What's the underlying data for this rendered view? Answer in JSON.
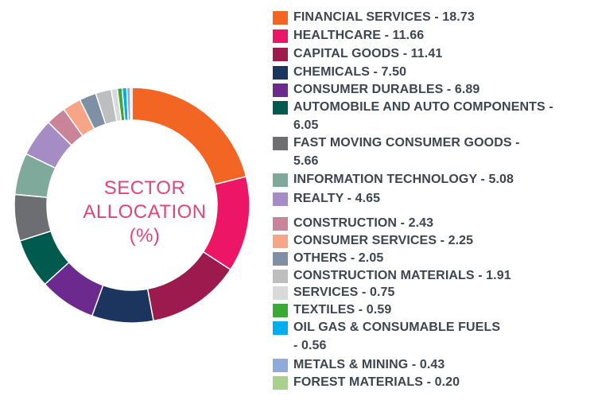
{
  "chart_data": {
    "type": "pie",
    "center_title": [
      "SECTOR",
      "ALLOCATION",
      "(%)"
    ],
    "series": [
      {
        "label": "FINANCIAL SERVICES",
        "value": 18.73,
        "display": "FINANCIAL SERVICES - 18.73",
        "color": "#f26522"
      },
      {
        "label": "HEALTHCARE",
        "value": 11.66,
        "display": "HEALTHCARE - 11.66",
        "color": "#ec1566"
      },
      {
        "label": "CAPITAL GOODS",
        "value": 11.41,
        "display": "CAPITAL GOODS - 11.41",
        "color": "#9c1a4e"
      },
      {
        "label": "CHEMICALS",
        "value": 7.5,
        "display": "CHEMICALS - 7.50",
        "color": "#1c355e"
      },
      {
        "label": "CONSUMER DURABLES",
        "value": 6.89,
        "display": "CONSUMER DURABLES - 6.89",
        "color": "#6d2a8e"
      },
      {
        "label": "AUTOMOBILE AND AUTO COMPONENTS",
        "value": 6.05,
        "display": [
          "AUTOMOBILE AND AUTO COMPONENTS -",
          "6.05"
        ],
        "color": "#005a4e"
      },
      {
        "label": "FAST MOVING CONSUMER GOODS",
        "value": 5.66,
        "display": [
          "FAST MOVING CONSUMER GOODS -",
          "5.66"
        ],
        "color": "#6d6e71"
      },
      {
        "label": "INFORMATION TECHNOLOGY",
        "value": 5.08,
        "display": "INFORMATION TECHNOLOGY - 5.08",
        "color": "#7fa99b"
      },
      {
        "label": "REALTY",
        "value": 4.65,
        "display": "REALTY - 4.65",
        "color": "#a58cc4"
      },
      {
        "label": "CONSTRUCTION",
        "value": 2.43,
        "display": "CONSTRUCTION - 2.43",
        "color": "#c9849a"
      },
      {
        "label": "CONSUMER SERVICES",
        "value": 2.25,
        "display": "CONSUMER SERVICES - 2.25",
        "color": "#f7a586"
      },
      {
        "label": "OTHERS",
        "value": 2.05,
        "display": "OTHERS - 2.05",
        "color": "#7f8fa6"
      },
      {
        "label": "CONSTRUCTION MATERIALS",
        "value": 1.91,
        "display": "CONSTRUCTION MATERIALS - 1.91",
        "color": "#bcbec0"
      },
      {
        "label": "SERVICES",
        "value": 0.75,
        "display": "SERVICES - 0.75",
        "color": "#d9d9d9"
      },
      {
        "label": "TEXTILES",
        "value": 0.59,
        "display": "TEXTILES - 0.59",
        "color": "#3aaa35"
      },
      {
        "label": "OIL GAS & CONSUMABLE FUELS",
        "value": 0.56,
        "display": [
          "OIL GAS & CONSUMABLE FUELS",
          "- 0.56"
        ],
        "color": "#00aeef"
      },
      {
        "label": "METALS & MINING",
        "value": 0.43,
        "display": "METALS & MINING - 0.43",
        "color": "#8faadc"
      },
      {
        "label": "FOREST MATERIALS",
        "value": 0.2,
        "display": "FOREST MATERIALS - 0.20",
        "color": "#a9d18e"
      }
    ],
    "legend_position": "right",
    "start_angle": "top, clockwise"
  }
}
